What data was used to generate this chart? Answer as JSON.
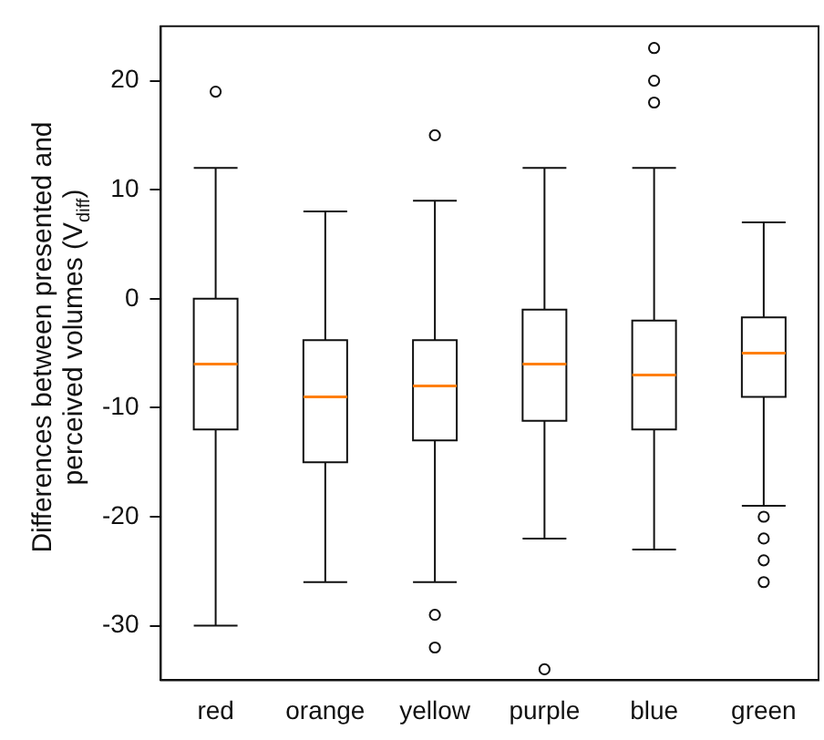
{
  "chart_data": {
    "type": "box",
    "ylabel": "Differences between presented and perceived volumes (V$_{diff}$)",
    "categories": [
      "red",
      "orange",
      "yellow",
      "purple",
      "blue",
      "green"
    ],
    "boxes": [
      {
        "low": -30,
        "q1": -12,
        "median": -6,
        "q3": 0,
        "high": 12,
        "outliers": [
          19
        ]
      },
      {
        "low": -26,
        "q1": -15,
        "median": -9,
        "q3": -3.8,
        "high": 8
      },
      {
        "low": -26,
        "q1": -13,
        "median": -8,
        "q3": -3.8,
        "high": 9,
        "outliers": [
          15,
          -29,
          -32
        ]
      },
      {
        "low": -22,
        "q1": -11.2,
        "median": -6,
        "q3": -1,
        "high": 12,
        "outliers": [
          -34
        ]
      },
      {
        "low": -23,
        "q1": -12,
        "median": -7,
        "q3": -2,
        "high": 12,
        "outliers": [
          23,
          20,
          18
        ]
      },
      {
        "low": -19,
        "q1": -9,
        "median": -5,
        "q3": -1.7,
        "high": 7,
        "outliers": [
          -20,
          -22,
          -24,
          -26
        ]
      }
    ],
    "ylim": [
      -35,
      25
    ],
    "yticks": [
      -30,
      -20,
      -10,
      0,
      10,
      20
    ],
    "grid": false
  }
}
